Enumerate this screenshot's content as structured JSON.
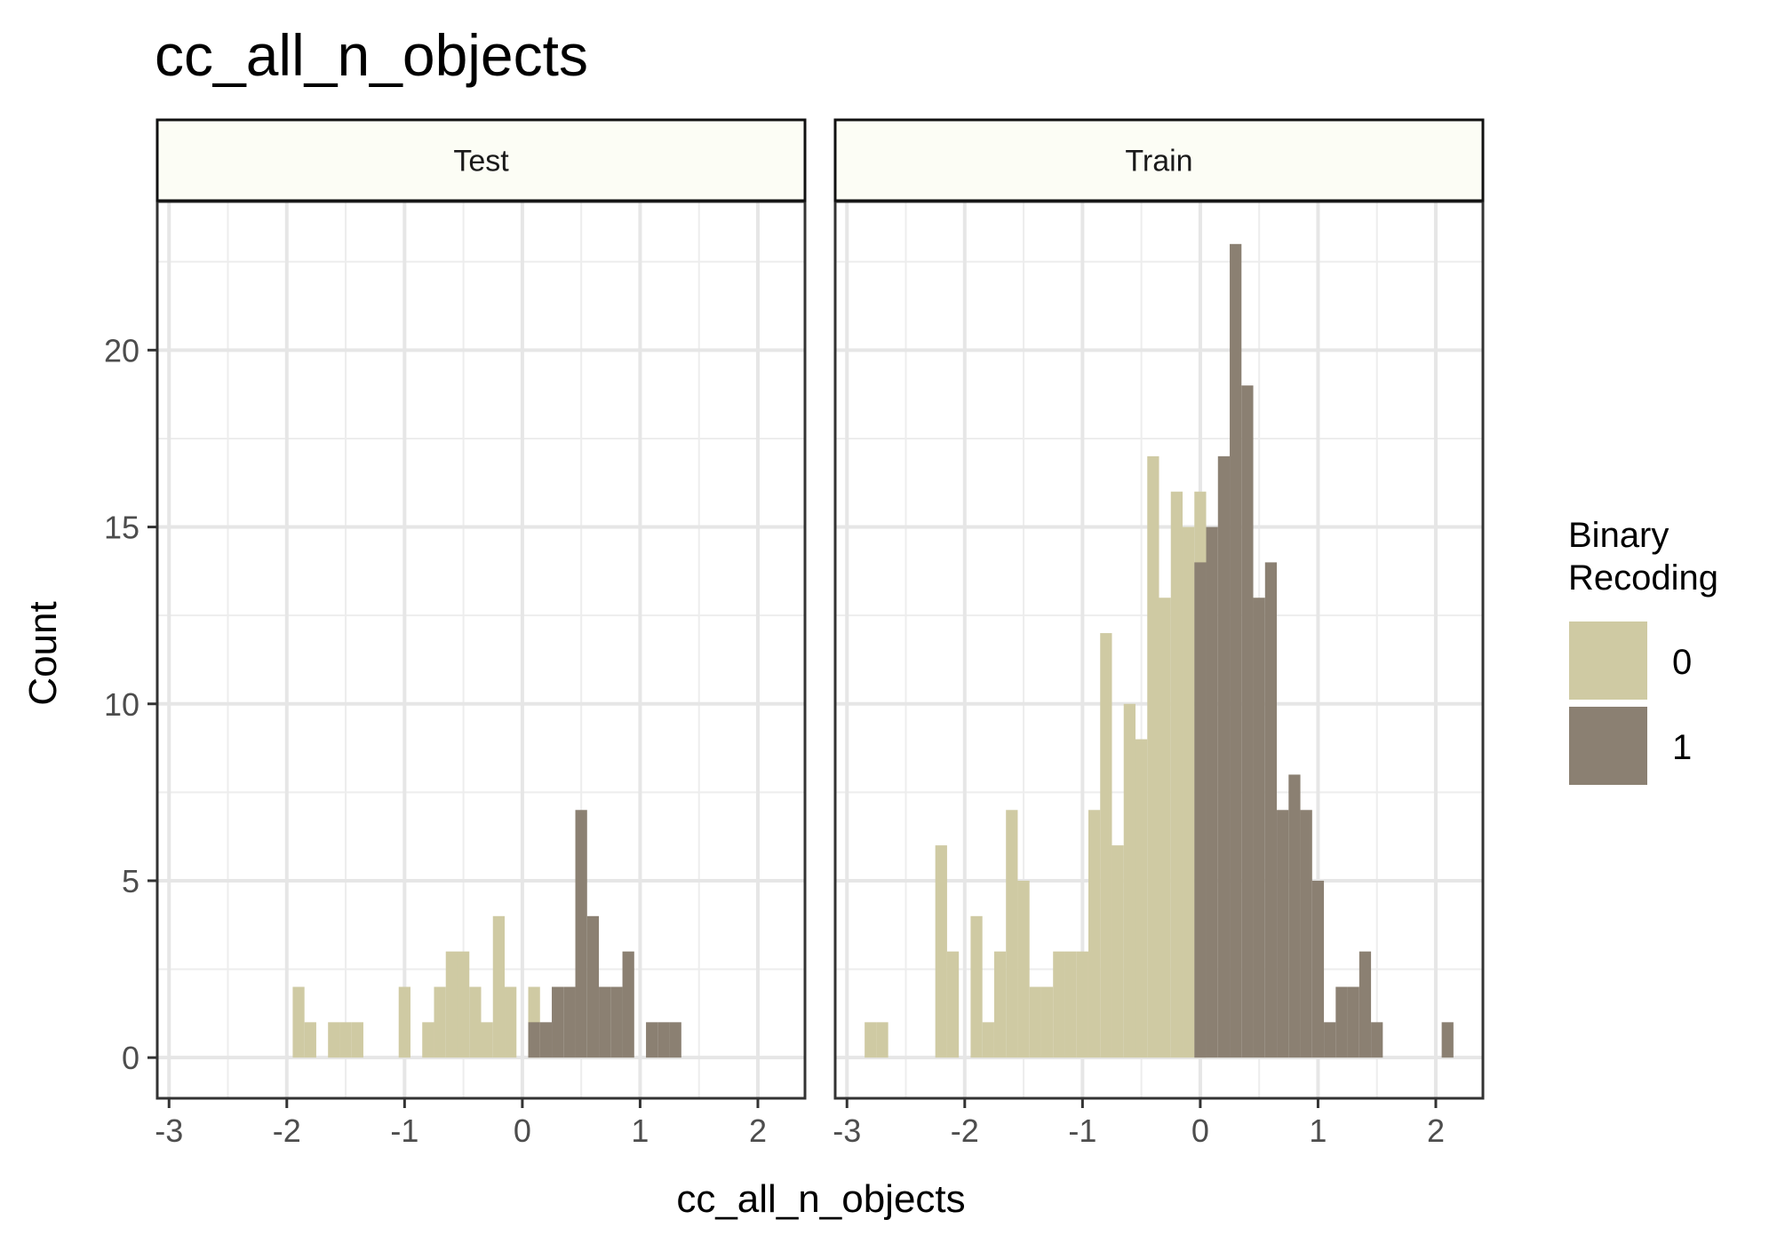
{
  "title": "cc_all_n_objects",
  "xlabel": "cc_all_n_objects",
  "ylabel": "Count",
  "legend_title_line1": "Binary",
  "legend_title_line2": "Recoding",
  "chart_data": {
    "type": "bar",
    "subtype": "histogram",
    "title": "cc_all_n_objects",
    "xlabel": "cc_all_n_objects",
    "ylabel": "Count",
    "xlim": [
      -3.1,
      2.4
    ],
    "ylim": [
      -1.15,
      24.2
    ],
    "x_ticks": [
      -3,
      -2,
      -1,
      0,
      1,
      2
    ],
    "y_ticks": [
      0,
      5,
      10,
      15,
      20
    ],
    "bin_width": 0.1,
    "grid": true,
    "legend": {
      "title": "Binary Recoding",
      "position": "right",
      "entries": [
        {
          "label": "0",
          "color": "#d0ca a2"
        },
        {
          "label": "1",
          "color": "#8c8173"
        }
      ]
    },
    "colors": {
      "0": "#cfcaa3",
      "1": "#8b8072"
    },
    "panels": [
      {
        "name": "Test",
        "series": [
          {
            "name": "0",
            "bins": [
              {
                "x0": -1.95,
                "x1": -1.85,
                "count": 2
              },
              {
                "x0": -1.85,
                "x1": -1.75,
                "count": 1
              },
              {
                "x0": -1.65,
                "x1": -1.55,
                "count": 1
              },
              {
                "x0": -1.55,
                "x1": -1.45,
                "count": 1
              },
              {
                "x0": -1.45,
                "x1": -1.35,
                "count": 1
              },
              {
                "x0": -1.05,
                "x1": -0.95,
                "count": 2
              },
              {
                "x0": -0.85,
                "x1": -0.75,
                "count": 1
              },
              {
                "x0": -0.75,
                "x1": -0.65,
                "count": 2
              },
              {
                "x0": -0.65,
                "x1": -0.55,
                "count": 3
              },
              {
                "x0": -0.55,
                "x1": -0.45,
                "count": 3
              },
              {
                "x0": -0.45,
                "x1": -0.35,
                "count": 2
              },
              {
                "x0": -0.35,
                "x1": -0.25,
                "count": 1
              },
              {
                "x0": -0.25,
                "x1": -0.15,
                "count": 4
              },
              {
                "x0": -0.15,
                "x1": -0.05,
                "count": 2
              },
              {
                "x0": 0.05,
                "x1": 0.15,
                "count": 2
              }
            ]
          },
          {
            "name": "1",
            "bins": [
              {
                "x0": 0.05,
                "x1": 0.15,
                "count": 1
              },
              {
                "x0": 0.15,
                "x1": 0.25,
                "count": 1
              },
              {
                "x0": 0.25,
                "x1": 0.35,
                "count": 2
              },
              {
                "x0": 0.35,
                "x1": 0.45,
                "count": 2
              },
              {
                "x0": 0.45,
                "x1": 0.55,
                "count": 7
              },
              {
                "x0": 0.55,
                "x1": 0.65,
                "count": 4
              },
              {
                "x0": 0.65,
                "x1": 0.75,
                "count": 2
              },
              {
                "x0": 0.75,
                "x1": 0.85,
                "count": 2
              },
              {
                "x0": 0.85,
                "x1": 0.95,
                "count": 3
              },
              {
                "x0": 1.05,
                "x1": 1.15,
                "count": 1
              },
              {
                "x0": 1.15,
                "x1": 1.25,
                "count": 1
              },
              {
                "x0": 1.25,
                "x1": 1.35,
                "count": 1
              }
            ]
          }
        ]
      },
      {
        "name": "Train",
        "series": [
          {
            "name": "0",
            "bins": [
              {
                "x0": -2.85,
                "x1": -2.75,
                "count": 1
              },
              {
                "x0": -2.75,
                "x1": -2.65,
                "count": 1
              },
              {
                "x0": -2.25,
                "x1": -2.15,
                "count": 6
              },
              {
                "x0": -2.15,
                "x1": -2.05,
                "count": 3
              },
              {
                "x0": -1.95,
                "x1": -1.85,
                "count": 4
              },
              {
                "x0": -1.85,
                "x1": -1.75,
                "count": 1
              },
              {
                "x0": -1.75,
                "x1": -1.65,
                "count": 3
              },
              {
                "x0": -1.65,
                "x1": -1.55,
                "count": 7
              },
              {
                "x0": -1.55,
                "x1": -1.45,
                "count": 5
              },
              {
                "x0": -1.45,
                "x1": -1.35,
                "count": 2
              },
              {
                "x0": -1.35,
                "x1": -1.25,
                "count": 2
              },
              {
                "x0": -1.25,
                "x1": -1.15,
                "count": 3
              },
              {
                "x0": -1.15,
                "x1": -1.05,
                "count": 3
              },
              {
                "x0": -1.05,
                "x1": -0.95,
                "count": 3
              },
              {
                "x0": -0.95,
                "x1": -0.85,
                "count": 7
              },
              {
                "x0": -0.85,
                "x1": -0.75,
                "count": 12
              },
              {
                "x0": -0.75,
                "x1": -0.65,
                "count": 6
              },
              {
                "x0": -0.65,
                "x1": -0.55,
                "count": 10
              },
              {
                "x0": -0.55,
                "x1": -0.45,
                "count": 9
              },
              {
                "x0": -0.45,
                "x1": -0.35,
                "count": 17
              },
              {
                "x0": -0.35,
                "x1": -0.25,
                "count": 13
              },
              {
                "x0": -0.25,
                "x1": -0.15,
                "count": 16
              },
              {
                "x0": -0.15,
                "x1": -0.05,
                "count": 15
              },
              {
                "x0": -0.05,
                "x1": 0.05,
                "count": 16
              }
            ]
          },
          {
            "name": "1",
            "bins": [
              {
                "x0": -0.05,
                "x1": 0.05,
                "count": 14
              },
              {
                "x0": 0.05,
                "x1": 0.15,
                "count": 15
              },
              {
                "x0": 0.15,
                "x1": 0.25,
                "count": 17
              },
              {
                "x0": 0.25,
                "x1": 0.35,
                "count": 23
              },
              {
                "x0": 0.35,
                "x1": 0.45,
                "count": 19
              },
              {
                "x0": 0.45,
                "x1": 0.55,
                "count": 13
              },
              {
                "x0": 0.55,
                "x1": 0.65,
                "count": 14
              },
              {
                "x0": 0.65,
                "x1": 0.75,
                "count": 7
              },
              {
                "x0": 0.75,
                "x1": 0.85,
                "count": 8
              },
              {
                "x0": 0.85,
                "x1": 0.95,
                "count": 7
              },
              {
                "x0": 0.95,
                "x1": 1.05,
                "count": 5
              },
              {
                "x0": 1.05,
                "x1": 1.15,
                "count": 1
              },
              {
                "x0": 1.15,
                "x1": 1.25,
                "count": 2
              },
              {
                "x0": 1.25,
                "x1": 1.35,
                "count": 2
              },
              {
                "x0": 1.35,
                "x1": 1.45,
                "count": 3
              },
              {
                "x0": 1.45,
                "x1": 1.55,
                "count": 1
              },
              {
                "x0": 2.05,
                "x1": 2.15,
                "count": 1
              }
            ]
          }
        ]
      }
    ]
  }
}
